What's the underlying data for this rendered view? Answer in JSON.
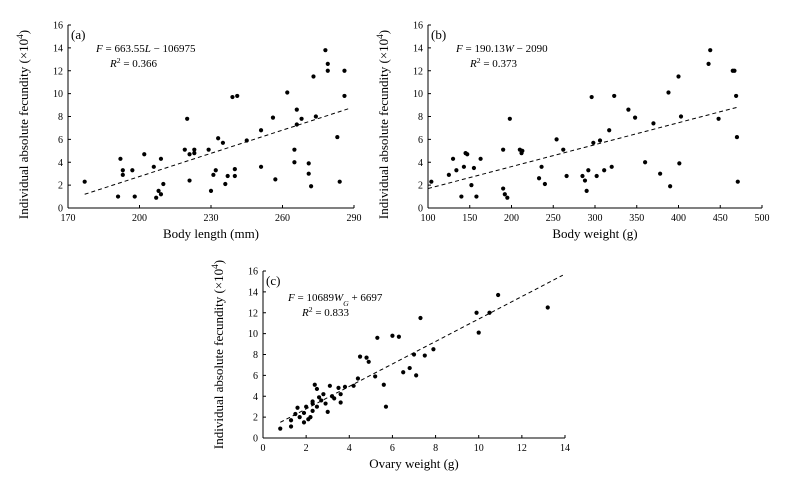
{
  "chart_data": [
    {
      "type": "scatter",
      "panel_label": "(a)",
      "xlabel": "Body length (mm)",
      "ylabel": "Individual absolute fecundity (×10⁴)",
      "equation": "F = 663.55L − 106975",
      "r2": "R² = 0.366",
      "xlim": [
        170,
        290
      ],
      "ylim": [
        0,
        16
      ],
      "xticks": [
        170,
        200,
        230,
        260,
        290
      ],
      "yticks": [
        0,
        2,
        4,
        6,
        8,
        10,
        12,
        14,
        16
      ],
      "fit_line": {
        "x": [
          177,
          288
        ],
        "y": [
          1.2,
          8.7
        ]
      },
      "points": [
        [
          177,
          2.3
        ],
        [
          191,
          1.0
        ],
        [
          192,
          4.3
        ],
        [
          193,
          3.3
        ],
        [
          193,
          2.9
        ],
        [
          197,
          3.3
        ],
        [
          198,
          1.0
        ],
        [
          202,
          4.7
        ],
        [
          206,
          3.6
        ],
        [
          207,
          0.9
        ],
        [
          208,
          1.5
        ],
        [
          209,
          4.3
        ],
        [
          209,
          1.2
        ],
        [
          210,
          2.1
        ],
        [
          219,
          5.1
        ],
        [
          220,
          7.8
        ],
        [
          221,
          2.4
        ],
        [
          221,
          4.7
        ],
        [
          223,
          4.8
        ],
        [
          223,
          5.1
        ],
        [
          229,
          5.1
        ],
        [
          230,
          1.5
        ],
        [
          231,
          2.9
        ],
        [
          232,
          3.3
        ],
        [
          233,
          6.1
        ],
        [
          235,
          5.7
        ],
        [
          236,
          2.1
        ],
        [
          237,
          2.8
        ],
        [
          239,
          9.7
        ],
        [
          240,
          3.4
        ],
        [
          240,
          2.8
        ],
        [
          241,
          9.8
        ],
        [
          245,
          5.9
        ],
        [
          251,
          3.6
        ],
        [
          251,
          6.8
        ],
        [
          256,
          7.9
        ],
        [
          257,
          2.5
        ],
        [
          262,
          10.1
        ],
        [
          265,
          5.1
        ],
        [
          265,
          4.0
        ],
        [
          266,
          8.6
        ],
        [
          266,
          7.3
        ],
        [
          268,
          7.8
        ],
        [
          271,
          3.9
        ],
        [
          271,
          3.0
        ],
        [
          272,
          1.9
        ],
        [
          273,
          11.5
        ],
        [
          274,
          8.0
        ],
        [
          278,
          13.8
        ],
        [
          279,
          12.6
        ],
        [
          279,
          12.0
        ],
        [
          283,
          6.2
        ],
        [
          284,
          2.3
        ],
        [
          286,
          12.0
        ],
        [
          286,
          9.8
        ]
      ]
    },
    {
      "type": "scatter",
      "panel_label": "(b)",
      "xlabel": "Body weight (g)",
      "ylabel": "Individual absolute fecundity (×10⁴)",
      "equation": "F = 190.13W − 2090",
      "r2": "R² = 0.373",
      "xlim": [
        100,
        500
      ],
      "ylim": [
        0,
        16
      ],
      "xticks": [
        100,
        150,
        200,
        250,
        300,
        350,
        400,
        450,
        500
      ],
      "yticks": [
        0,
        2,
        4,
        6,
        8,
        10,
        12,
        14,
        16
      ],
      "fit_line": {
        "x": [
          100,
          470
        ],
        "y": [
          1.7,
          8.8
        ]
      },
      "points": [
        [
          104,
          2.3
        ],
        [
          125,
          2.9
        ],
        [
          130,
          4.3
        ],
        [
          134,
          3.3
        ],
        [
          140,
          1.0
        ],
        [
          143,
          3.6
        ],
        [
          145,
          4.8
        ],
        [
          147,
          4.7
        ],
        [
          152,
          2.0
        ],
        [
          155,
          3.5
        ],
        [
          158,
          1.0
        ],
        [
          163,
          4.3
        ],
        [
          190,
          5.1
        ],
        [
          190,
          1.7
        ],
        [
          192,
          1.2
        ],
        [
          195,
          0.9
        ],
        [
          198,
          7.8
        ],
        [
          210,
          5.1
        ],
        [
          212,
          4.8
        ],
        [
          213,
          5.0
        ],
        [
          233,
          2.6
        ],
        [
          236,
          3.6
        ],
        [
          240,
          2.1
        ],
        [
          254,
          6.0
        ],
        [
          262,
          5.1
        ],
        [
          266,
          2.8
        ],
        [
          285,
          2.8
        ],
        [
          288,
          2.4
        ],
        [
          290,
          1.5
        ],
        [
          292,
          3.3
        ],
        [
          296,
          9.7
        ],
        [
          298,
          5.7
        ],
        [
          302,
          2.8
        ],
        [
          306,
          5.9
        ],
        [
          311,
          3.3
        ],
        [
          317,
          6.8
        ],
        [
          320,
          3.6
        ],
        [
          323,
          9.8
        ],
        [
          340,
          8.6
        ],
        [
          348,
          7.9
        ],
        [
          360,
          4.0
        ],
        [
          370,
          7.4
        ],
        [
          378,
          3.0
        ],
        [
          388,
          10.1
        ],
        [
          390,
          1.9
        ],
        [
          400,
          11.5
        ],
        [
          401,
          3.9
        ],
        [
          403,
          8.0
        ],
        [
          436,
          12.6
        ],
        [
          438,
          13.8
        ],
        [
          448,
          7.8
        ],
        [
          465,
          12.0
        ],
        [
          467,
          12.0
        ],
        [
          469,
          9.8
        ],
        [
          470,
          6.2
        ],
        [
          471,
          2.3
        ]
      ]
    },
    {
      "type": "scatter",
      "panel_label": "(c)",
      "xlabel": "Ovary weight (g)",
      "ylabel": "Individual absolute fecundity (×10⁴)",
      "equation": "F = 10689WG + 6697",
      "r2": "R² = 0.833",
      "xlim": [
        0,
        14
      ],
      "ylim": [
        0,
        16
      ],
      "xticks": [
        0,
        2,
        4,
        6,
        8,
        10,
        12,
        14
      ],
      "yticks": [
        0,
        2,
        4,
        6,
        8,
        10,
        12,
        14,
        16
      ],
      "fit_line": {
        "x": [
          0.8,
          13.9
        ],
        "y": [
          1.5,
          15.6
        ]
      },
      "points": [
        [
          0.8,
          0.9
        ],
        [
          1.3,
          1.1
        ],
        [
          1.3,
          1.7
        ],
        [
          1.5,
          2.3
        ],
        [
          1.6,
          2.9
        ],
        [
          1.7,
          2.0
        ],
        [
          1.9,
          1.5
        ],
        [
          1.9,
          2.4
        ],
        [
          2.0,
          3.0
        ],
        [
          2.1,
          1.8
        ],
        [
          2.2,
          2.0
        ],
        [
          2.3,
          2.6
        ],
        [
          2.3,
          3.3
        ],
        [
          2.3,
          3.5
        ],
        [
          2.4,
          5.1
        ],
        [
          2.5,
          4.7
        ],
        [
          2.5,
          3.0
        ],
        [
          2.6,
          3.9
        ],
        [
          2.7,
          3.6
        ],
        [
          2.8,
          4.2
        ],
        [
          2.9,
          3.3
        ],
        [
          3.0,
          2.5
        ],
        [
          3.1,
          5.0
        ],
        [
          3.2,
          4.0
        ],
        [
          3.3,
          3.8
        ],
        [
          3.5,
          4.8
        ],
        [
          3.6,
          4.2
        ],
        [
          3.6,
          3.4
        ],
        [
          3.8,
          4.9
        ],
        [
          4.2,
          5.0
        ],
        [
          4.4,
          5.7
        ],
        [
          4.5,
          7.8
        ],
        [
          4.8,
          7.7
        ],
        [
          4.9,
          7.3
        ],
        [
          5.2,
          5.9
        ],
        [
          5.3,
          9.6
        ],
        [
          5.6,
          5.1
        ],
        [
          5.7,
          3.0
        ],
        [
          6.0,
          9.8
        ],
        [
          6.3,
          9.7
        ],
        [
          6.5,
          6.3
        ],
        [
          6.8,
          6.7
        ],
        [
          7.0,
          8.0
        ],
        [
          7.1,
          6.0
        ],
        [
          7.3,
          11.5
        ],
        [
          7.5,
          7.9
        ],
        [
          7.9,
          8.5
        ],
        [
          9.9,
          12.0
        ],
        [
          10.0,
          10.1
        ],
        [
          10.5,
          12.0
        ],
        [
          10.9,
          13.7
        ],
        [
          13.2,
          12.5
        ]
      ]
    }
  ]
}
